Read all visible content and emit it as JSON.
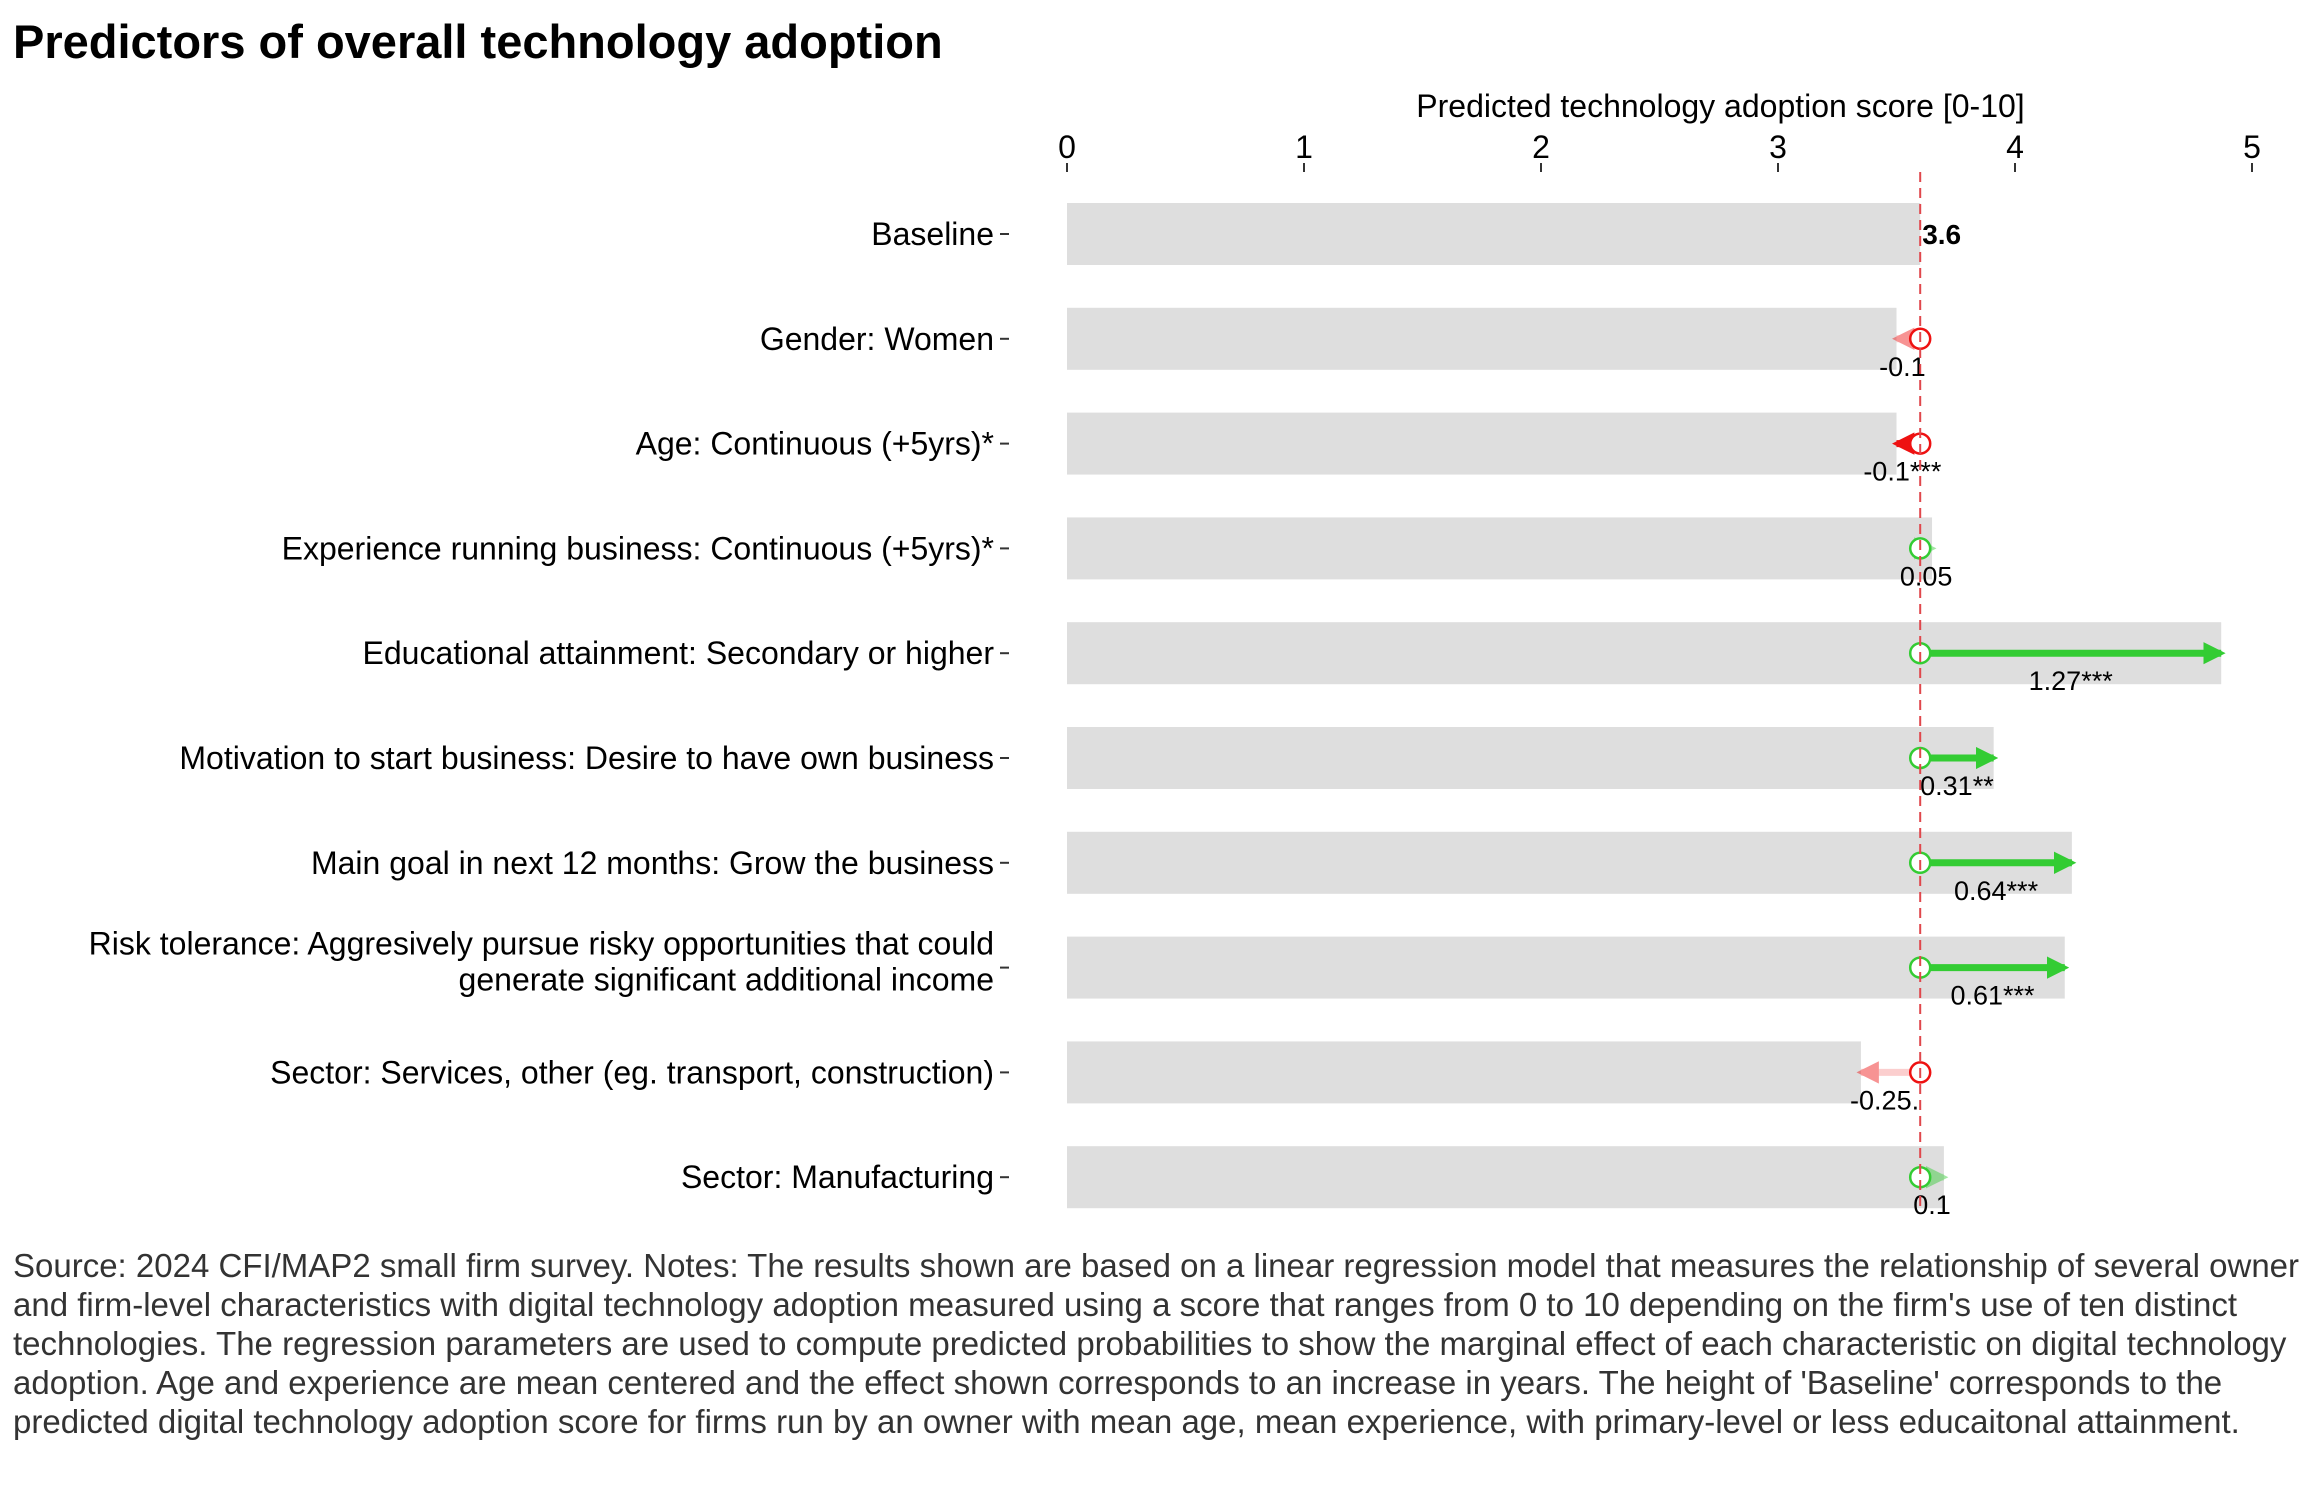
{
  "title": "Predictors of overall technology adoption",
  "source_note": "Source: 2024 CFI/MAP2 small firm survey. Notes: The results shown are based on a linear regression model that measures the relationship of several owner and firm-level characteristics with digital technology adoption measured using a score that ranges from 0 to 10 depending on the firm's use of ten distinct technologies. The regression parameters are used to compute predicted probabilities to show the marginal effect of each characteristic on digital technology adoption. Age and experience are mean centered and the effect shown corresponds to an increase in years. The height of 'Baseline' corresponds to the predicted digital technology adoption score for firms run by an owner with mean age, mean experience, with primary-level or less educaitonal attainment.",
  "colors": {
    "bar": "#dedede",
    "positive": "#33cc33",
    "negative": "#ee1111",
    "baseline_line": "#e0474c"
  },
  "chart_data": {
    "type": "bar",
    "orientation": "horizontal",
    "xlabel": "Predicted technology adoption score [0-10]",
    "xlabel_position": "top",
    "xlim": [
      0,
      5
    ],
    "xticks": [
      "0",
      "1",
      "2",
      "3",
      "4",
      "5"
    ],
    "grid": false,
    "baseline": {
      "label": "Baseline",
      "value": 3.6,
      "value_label": "3.6"
    },
    "categories": [
      {
        "label": [
          "Gender: Women"
        ],
        "effect": -0.1,
        "effect_label": "-0.1",
        "significant": false
      },
      {
        "label": [
          "Age: Continuous (+5yrs)*"
        ],
        "effect": -0.1,
        "effect_label": "-0.1***",
        "significant": true
      },
      {
        "label": [
          "Experience running business: Continuous (+5yrs)*"
        ],
        "effect": 0.05,
        "effect_label": "0.05",
        "significant": false
      },
      {
        "label": [
          "Educational attainment: Secondary or higher"
        ],
        "effect": 1.27,
        "effect_label": "1.27***",
        "significant": true
      },
      {
        "label": [
          "Motivation to start business: Desire to have own business"
        ],
        "effect": 0.31,
        "effect_label": "0.31**",
        "significant": true
      },
      {
        "label": [
          "Main goal in next 12 months: Grow the business"
        ],
        "effect": 0.64,
        "effect_label": "0.64***",
        "significant": true
      },
      {
        "label": [
          "Risk tolerance: Aggresively pursue risky opportunities that could",
          "generate significant additional income"
        ],
        "effect": 0.61,
        "effect_label": "0.61***",
        "significant": true
      },
      {
        "label": [
          "Sector: Services, other (eg. transport, construction)"
        ],
        "effect": -0.25,
        "effect_label": "-0.25.",
        "significant": false
      },
      {
        "label": [
          "Sector: Manufacturing"
        ],
        "effect": 0.1,
        "effect_label": "0.1",
        "significant": false
      }
    ]
  }
}
